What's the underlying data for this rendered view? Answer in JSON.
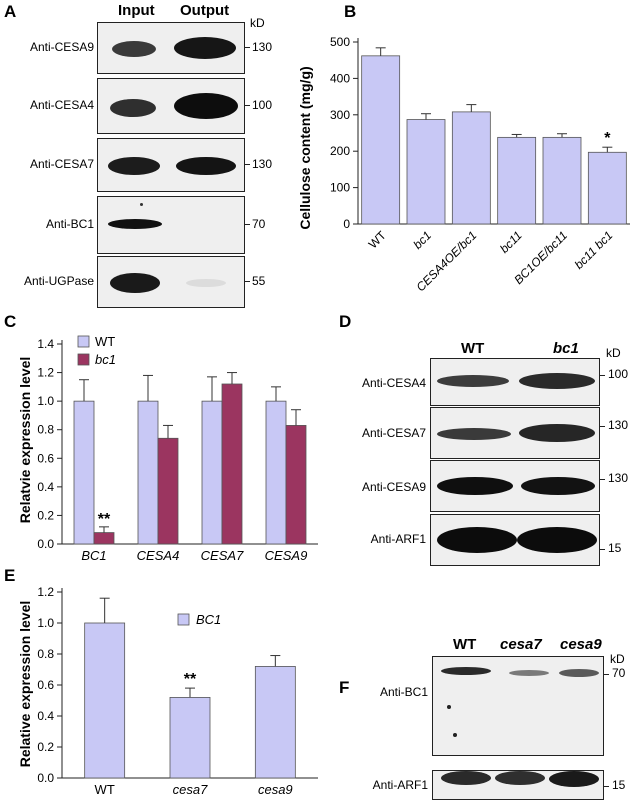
{
  "panels": {
    "A": {
      "label": "A",
      "columns": [
        "Input",
        "Output"
      ],
      "unit": "kD",
      "rows": [
        {
          "antibody": "Anti-CESA9",
          "mw": "130"
        },
        {
          "antibody": "Anti-CESA4",
          "mw": "100"
        },
        {
          "antibody": "Anti-CESA7",
          "mw": "130"
        },
        {
          "antibody": "Anti-BC1",
          "mw": "70"
        },
        {
          "antibody": "Anti-UGPase",
          "mw": "55"
        }
      ]
    },
    "B": {
      "label": "B"
    },
    "C": {
      "label": "C"
    },
    "D": {
      "label": "D",
      "columns": [
        "WT",
        "bc1"
      ],
      "unit": "kD",
      "rows": [
        {
          "antibody": "Anti-CESA4",
          "mw": "100"
        },
        {
          "antibody": "Anti-CESA7",
          "mw": "130"
        },
        {
          "antibody": "Anti-CESA9",
          "mw": "130"
        },
        {
          "antibody": "Anti-ARF1",
          "mw": "15"
        }
      ]
    },
    "E": {
      "label": "E"
    },
    "F": {
      "label": "F",
      "columns": [
        "WT",
        "cesa7",
        "cesa9"
      ],
      "unit": "kD",
      "rows": [
        {
          "antibody": "Anti-BC1",
          "mw": "70"
        },
        {
          "antibody": "Anti-ARF1",
          "mw": "15"
        }
      ]
    }
  },
  "chart_data": [
    {
      "id": "B",
      "type": "bar",
      "ylabel": "Cellulose content (mg/g)",
      "categories": [
        "WT",
        "bc1",
        "CESA4OE/bc1",
        "bc11",
        "BC1OE/bc11",
        "bc11 bc1"
      ],
      "values": [
        462,
        287,
        308,
        238,
        238,
        197
      ],
      "errors": [
        22,
        16,
        20,
        8,
        10,
        14
      ],
      "significance": [
        "",
        "",
        "",
        "",
        "",
        "*"
      ],
      "yticks": [
        0,
        100,
        200,
        300,
        400,
        500
      ],
      "ylim": [
        0,
        500
      ],
      "color": "#c8c8f5"
    },
    {
      "id": "C",
      "type": "bar",
      "ylabel": "Relatvie expression level",
      "categories": [
        "BC1",
        "CESA4",
        "CESA7",
        "CESA9"
      ],
      "series": [
        {
          "name": "WT",
          "values": [
            1.0,
            1.0,
            1.0,
            1.0
          ],
          "errors": [
            0.15,
            0.18,
            0.17,
            0.1
          ],
          "color": "#c8c8f5"
        },
        {
          "name": "bc1",
          "values": [
            0.08,
            0.74,
            1.12,
            0.83
          ],
          "errors": [
            0.04,
            0.09,
            0.08,
            0.11
          ],
          "color": "#9b3560"
        }
      ],
      "significance": [
        "**",
        "",
        "",
        ""
      ],
      "yticks": [
        "0.0",
        "0.2",
        "0.4",
        "0.6",
        "0.8",
        "1.0",
        "1.2",
        "1.4"
      ],
      "ylim": [
        0,
        1.4
      ],
      "legend": "top-left"
    },
    {
      "id": "E",
      "type": "bar",
      "ylabel": "Relative expression level",
      "categories": [
        "WT",
        "cesa7",
        "cesa9"
      ],
      "series": [
        {
          "name": "BC1",
          "values": [
            1.0,
            0.52,
            0.72
          ],
          "errors": [
            0.16,
            0.06,
            0.07
          ],
          "color": "#c8c8f5"
        }
      ],
      "significance": [
        "",
        "**",
        ""
      ],
      "yticks": [
        "0.0",
        "0.2",
        "0.4",
        "0.6",
        "0.8",
        "1.0",
        "1.2"
      ],
      "ylim": [
        0,
        1.2
      ],
      "legend": "top-center"
    }
  ]
}
